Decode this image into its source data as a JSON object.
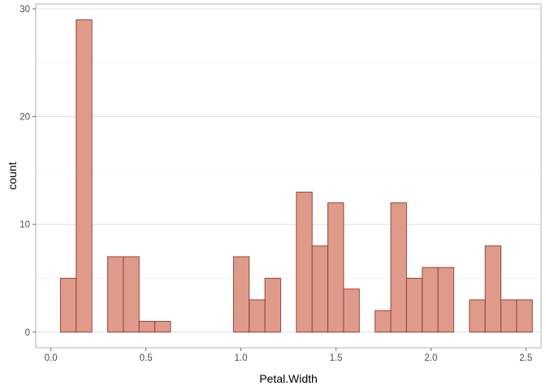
{
  "chart_data": {
    "type": "bar",
    "xlabel": "Petal.Width",
    "ylabel": "count",
    "xlim": [
      -0.08,
      2.58
    ],
    "ylim": [
      -1.45,
      30.45
    ],
    "x_ticks": [
      0.0,
      0.5,
      1.0,
      1.5,
      2.0,
      2.5
    ],
    "x_tick_labels": [
      "0.0",
      "0.5",
      "1.0",
      "1.5",
      "2.0",
      "2.5"
    ],
    "y_ticks": [
      0,
      10,
      20,
      30
    ],
    "y_tick_labels": [
      "0",
      "10",
      "20",
      "30"
    ],
    "bin_width": 0.0828,
    "bins": [
      {
        "x": 0.0914,
        "count": 5
      },
      {
        "x": 0.1742,
        "count": 29
      },
      {
        "x": 0.257,
        "count": 0
      },
      {
        "x": 0.3398,
        "count": 7
      },
      {
        "x": 0.4226,
        "count": 7
      },
      {
        "x": 0.5054,
        "count": 1
      },
      {
        "x": 0.5882,
        "count": 1
      },
      {
        "x": 0.671,
        "count": 0
      },
      {
        "x": 0.7538,
        "count": 0
      },
      {
        "x": 0.8366,
        "count": 0
      },
      {
        "x": 0.9194,
        "count": 0
      },
      {
        "x": 1.0022,
        "count": 7
      },
      {
        "x": 1.085,
        "count": 3
      },
      {
        "x": 1.1678,
        "count": 5
      },
      {
        "x": 1.2506,
        "count": 0
      },
      {
        "x": 1.3334,
        "count": 13
      },
      {
        "x": 1.4162,
        "count": 8
      },
      {
        "x": 1.499,
        "count": 12
      },
      {
        "x": 1.5818,
        "count": 4
      },
      {
        "x": 1.6646,
        "count": 0
      },
      {
        "x": 1.7474,
        "count": 2
      },
      {
        "x": 1.8302,
        "count": 12
      },
      {
        "x": 1.913,
        "count": 5
      },
      {
        "x": 1.9958,
        "count": 6
      },
      {
        "x": 2.0786,
        "count": 6
      },
      {
        "x": 2.1614,
        "count": 0
      },
      {
        "x": 2.2442,
        "count": 3
      },
      {
        "x": 2.327,
        "count": 8
      },
      {
        "x": 2.4098,
        "count": 3
      },
      {
        "x": 2.4926,
        "count": 3
      }
    ],
    "colors": {
      "bar_fill": "#e09a8a",
      "bar_stroke": "#8b3a2f",
      "grid_major": "#d9d9d9",
      "grid_minor": "#eeeeee",
      "panel_border": "#b3b3b3"
    },
    "grid": true
  }
}
